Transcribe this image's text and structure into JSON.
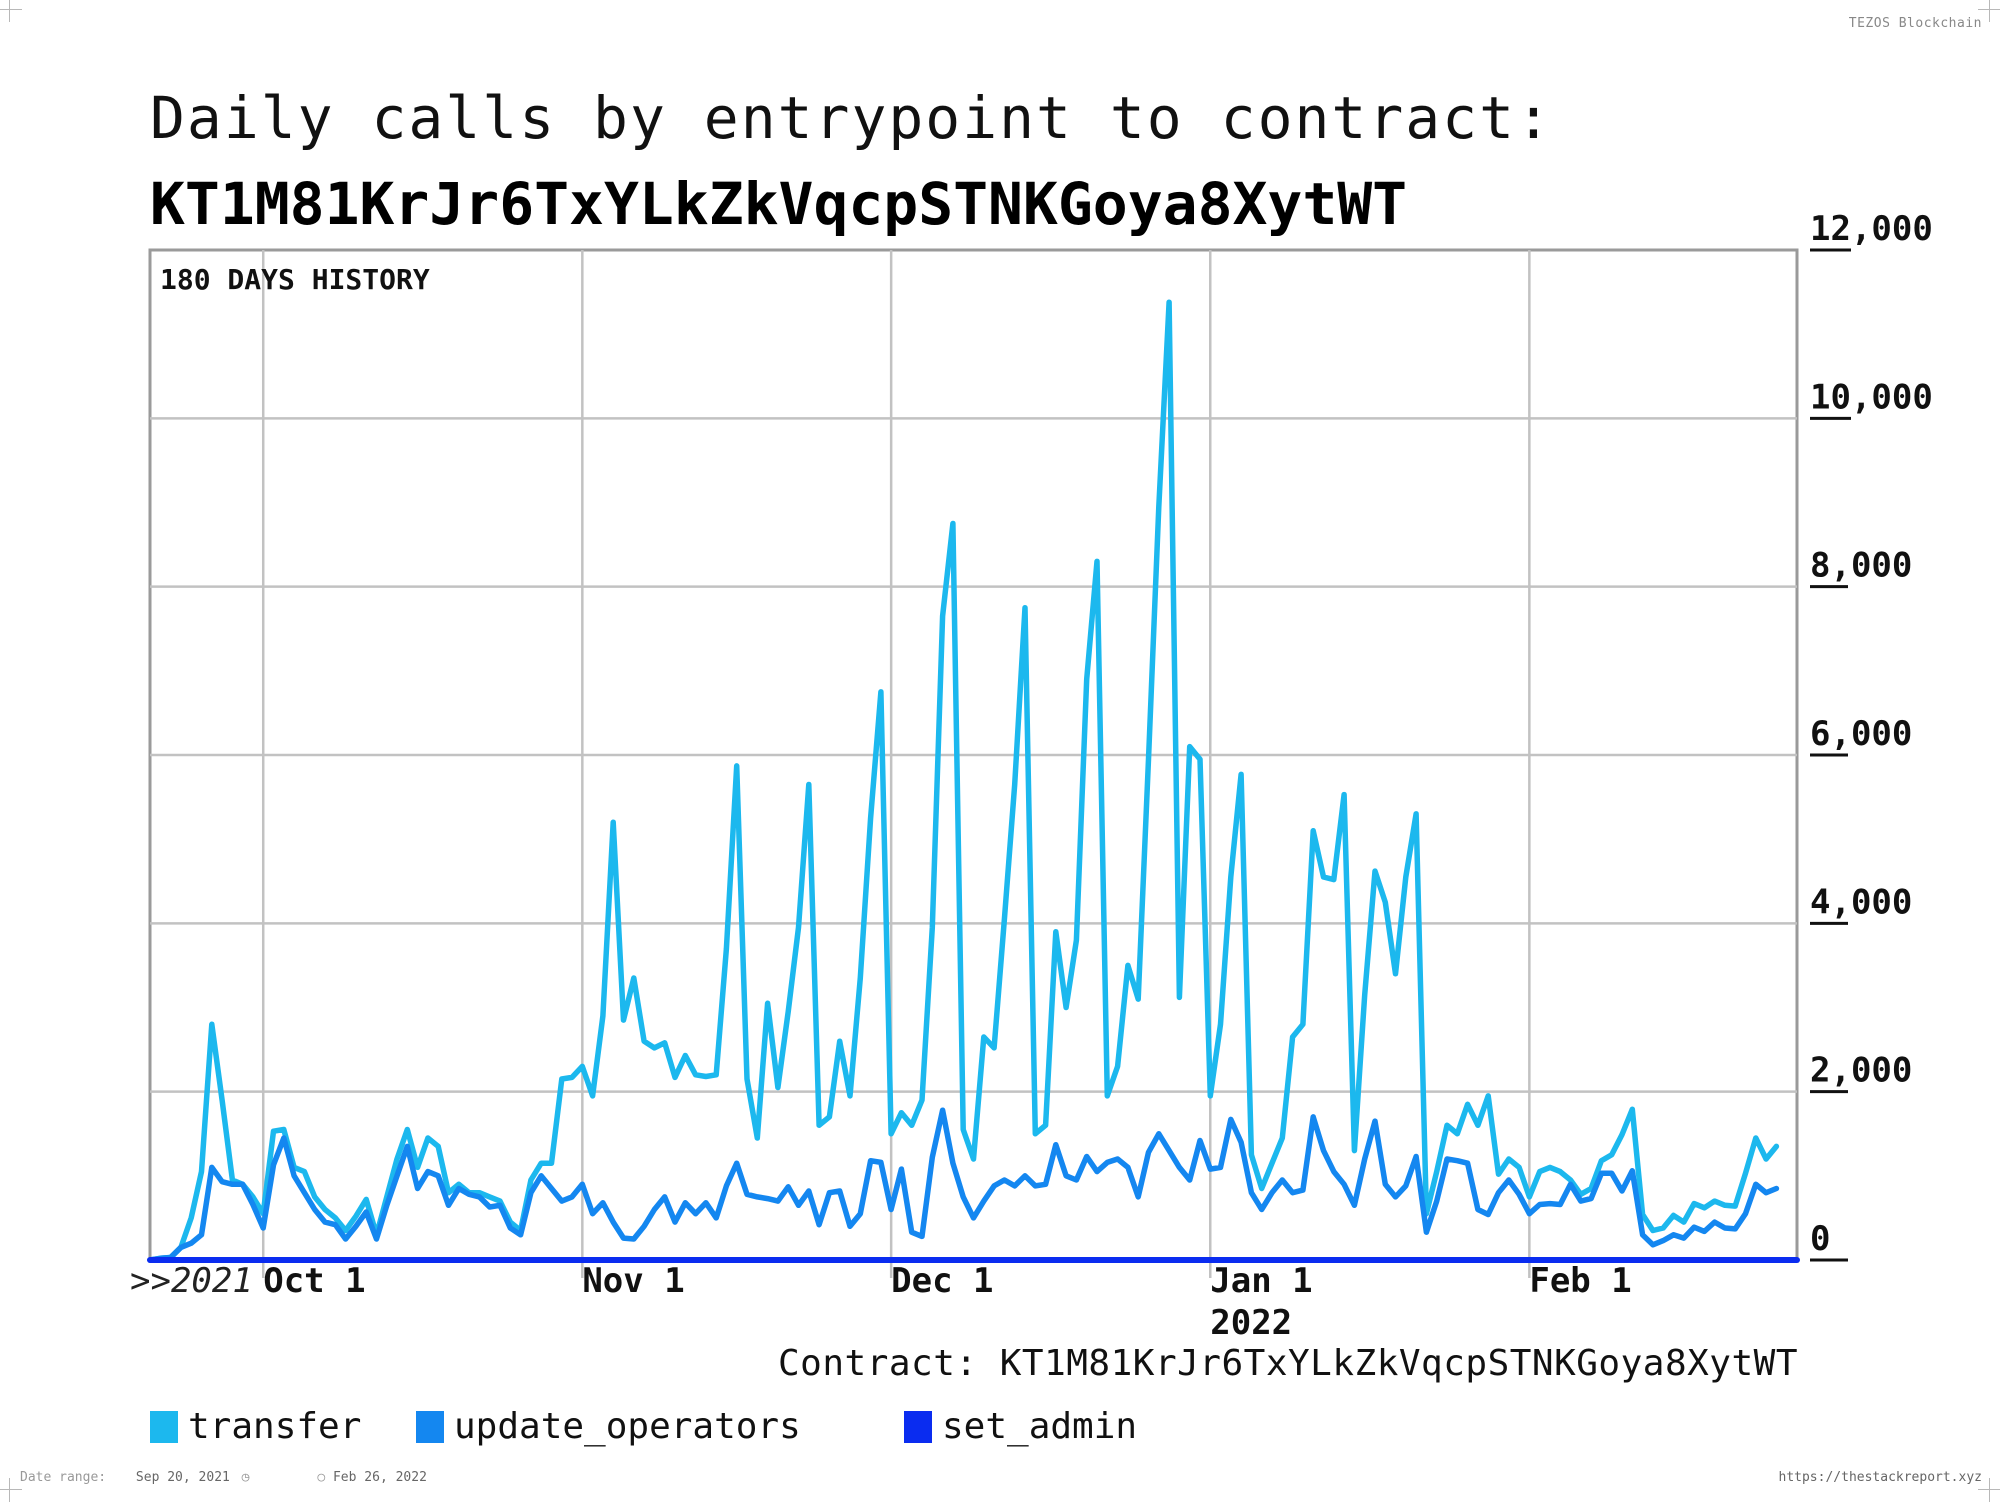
{
  "header": {
    "brand": "TEZOS Blockchain",
    "title_line1": "Daily calls by entrypoint to contract:",
    "title_line2": "KT1M81KrJr6TxYLkZkVqcpSTNKGoya8XytWT"
  },
  "footer": {
    "contract": "Contract: KT1M81KrJr6TxYLkZkVqcpSTNKGoya8XytWT",
    "date_range_label": "Date range:",
    "date_start": "Sep 20, 2021",
    "date_end": "Feb 26, 2022",
    "url": "https://thestackreport.xyz"
  },
  "chart_data": {
    "type": "line",
    "title": "Daily calls by entrypoint to contract: KT1M81KrJr6TxYLkZkVqcpSTNKGoya8XytWT",
    "subtitle": "180 DAYS HISTORY",
    "year_prefix": ">>2021",
    "xlabel": "",
    "ylabel": "",
    "ylim": [
      0,
      12000
    ],
    "xlim_days": [
      0,
      160
    ],
    "y_ticks": [
      0,
      2000,
      4000,
      6000,
      8000,
      10000,
      12000
    ],
    "y_tick_labels": [
      "0",
      "2,000",
      "4,000",
      "6,000",
      "8,000",
      "10,000",
      "12,000"
    ],
    "x_ticks": [
      {
        "day": 11,
        "label": "Oct 1",
        "sublabel": ""
      },
      {
        "day": 42,
        "label": "Nov 1",
        "sublabel": ""
      },
      {
        "day": 72,
        "label": "Dec 1",
        "sublabel": ""
      },
      {
        "day": 103,
        "label": "Jan 1",
        "sublabel": "2022"
      },
      {
        "day": 134,
        "label": "Feb 1",
        "sublabel": ""
      }
    ],
    "grid": true,
    "legend_position": "bottom",
    "series": [
      {
        "name": "transfer",
        "color": "#1cb8ee",
        "values": [
          0,
          20,
          30,
          150,
          500,
          1050,
          2800,
          1900,
          950,
          900,
          750,
          550,
          1530,
          1550,
          1100,
          1050,
          750,
          600,
          500,
          350,
          520,
          720,
          300,
          750,
          1200,
          1550,
          1100,
          1450,
          1350,
          800,
          900,
          800,
          800,
          750,
          700,
          450,
          350,
          950,
          1150,
          1150,
          2150,
          2170,
          2300,
          1950,
          2900,
          5200,
          2850,
          3350,
          2600,
          2520,
          2580,
          2170,
          2430,
          2200,
          2180,
          2200,
          3700,
          5870,
          2150,
          1450,
          3050,
          2050,
          2950,
          3950,
          5650,
          1600,
          1700,
          2600,
          1950,
          3350,
          5250,
          6750,
          1500,
          1750,
          1600,
          1900,
          3950,
          7650,
          8750,
          1550,
          1200,
          2650,
          2520,
          4050,
          5650,
          7750,
          1500,
          1600,
          3900,
          3000,
          3800,
          6900,
          8300,
          1950,
          2300,
          3500,
          3100,
          5950,
          8950,
          11380,
          3120,
          6100,
          5950,
          1950,
          2800,
          4550,
          5770,
          1250,
          850,
          1150,
          1450,
          2650,
          2800,
          5100,
          4550,
          4520,
          5530,
          1300,
          3150,
          4620,
          4250,
          3400,
          4550,
          5300,
          550,
          1050,
          1600,
          1500,
          1850,
          1600,
          1950,
          1020,
          1200,
          1100,
          750,
          1050,
          1100,
          1050,
          950,
          780,
          850,
          1180,
          1250,
          1490,
          1790,
          540,
          350,
          380,
          530,
          450,
          670,
          620,
          700,
          650,
          640,
          1030,
          1450,
          1200,
          1350
        ]
      },
      {
        "name": "update_operators",
        "color": "#1487f0",
        "values": [
          0,
          20,
          30,
          150,
          200,
          300,
          1100,
          930,
          900,
          900,
          660,
          380,
          1130,
          1450,
          1000,
          800,
          600,
          450,
          420,
          250,
          400,
          570,
          250,
          650,
          1000,
          1350,
          850,
          1050,
          1000,
          650,
          850,
          780,
          750,
          630,
          650,
          380,
          300,
          800,
          1000,
          850,
          700,
          750,
          900,
          550,
          680,
          450,
          260,
          250,
          400,
          600,
          750,
          450,
          680,
          550,
          680,
          500,
          880,
          1150,
          780,
          750,
          730,
          700,
          870,
          650,
          820,
          420,
          800,
          820,
          400,
          550,
          1180,
          1160,
          600,
          1080,
          330,
          280,
          1220,
          1780,
          1150,
          750,
          500,
          700,
          880,
          950,
          880,
          1000,
          880,
          900,
          1370,
          1000,
          950,
          1230,
          1050,
          1160,
          1200,
          1100,
          750,
          1280,
          1500,
          1300,
          1100,
          950,
          1420,
          1080,
          1100,
          1670,
          1400,
          800,
          600,
          800,
          950,
          800,
          830,
          1700,
          1300,
          1050,
          900,
          650,
          1200,
          1650,
          900,
          750,
          880,
          1230,
          330,
          700,
          1200,
          1180,
          1150,
          600,
          540,
          800,
          950,
          780,
          550,
          660,
          670,
          660,
          900,
          700,
          730,
          1030,
          1030,
          820,
          1060,
          300,
          180,
          230,
          300,
          260,
          390,
          340,
          450,
          380,
          370,
          550,
          900,
          800,
          850
        ]
      },
      {
        "name": "set_admin",
        "color": "#0a2cf0",
        "values": [
          0,
          0,
          0,
          0,
          0,
          0,
          0,
          0,
          0,
          0,
          0,
          0,
          0,
          0,
          0,
          0,
          0,
          0,
          0,
          0,
          0,
          0,
          0,
          0,
          0,
          0,
          0,
          0,
          0,
          0,
          0,
          0,
          0,
          0,
          0,
          0,
          0,
          0,
          0,
          0,
          0,
          0,
          0,
          0,
          0,
          0,
          0,
          0,
          0,
          0,
          0,
          0,
          0,
          0,
          0,
          0,
          0,
          0,
          0,
          0,
          0,
          0,
          0,
          0,
          0,
          0,
          0,
          0,
          0,
          0,
          0,
          0,
          0,
          0,
          0,
          0,
          0,
          0,
          0,
          0,
          0,
          0,
          0,
          0,
          0,
          0,
          0,
          0,
          0,
          0,
          0,
          0,
          0,
          0,
          0,
          0,
          0,
          0,
          0,
          0,
          0,
          0,
          0,
          0,
          0,
          0,
          0,
          0,
          0,
          0,
          0,
          0,
          0,
          0,
          0,
          0,
          0,
          0,
          0,
          0,
          0,
          0,
          0,
          0,
          0,
          0,
          0,
          0,
          0,
          0,
          0,
          0,
          0,
          0,
          0,
          0,
          0,
          0,
          0,
          0,
          0,
          0,
          0,
          0,
          0,
          0,
          0,
          0,
          0,
          0,
          0,
          0,
          0,
          0,
          0,
          0,
          0,
          0,
          0,
          0,
          0
        ]
      }
    ]
  }
}
